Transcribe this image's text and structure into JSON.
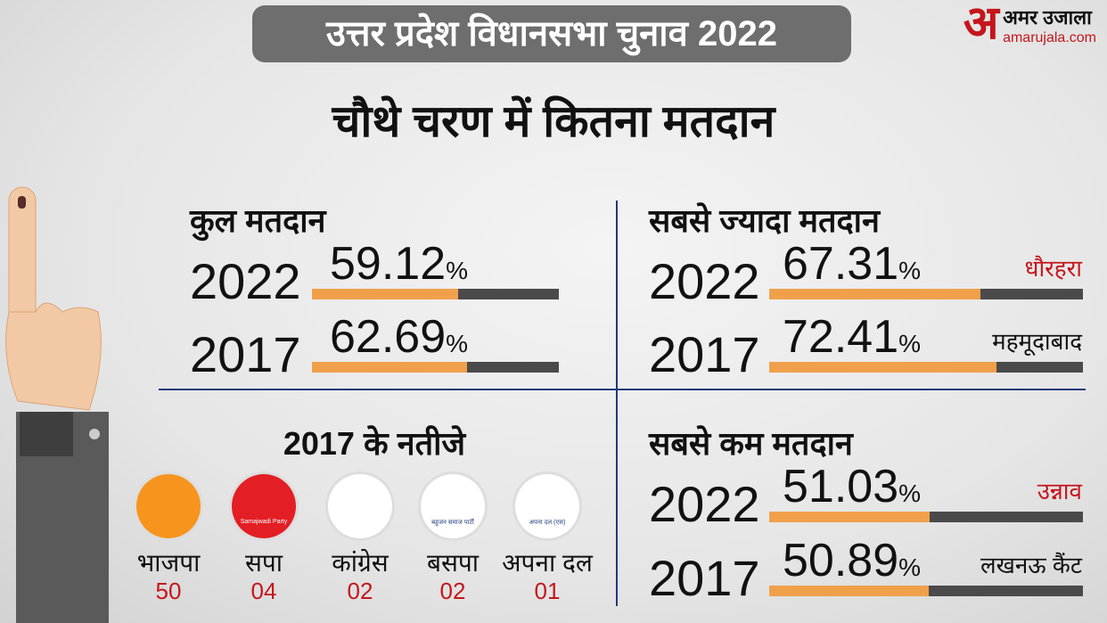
{
  "header": {
    "title": "उत्तर प्रदेश विधानसभा चुनाव 2022",
    "subtitle": "चौथे चरण में कितना मतदान"
  },
  "logo": {
    "mark": "अ",
    "name": "अमर उजाला",
    "url": "amarujala.com"
  },
  "turnout": {
    "unit": "%",
    "xlim": [
      0,
      100
    ],
    "panels": [
      {
        "title": "कुल मतदान",
        "rows": [
          {
            "year": "2022",
            "value": 59.12
          },
          {
            "year": "2017",
            "value": 62.69
          }
        ]
      },
      {
        "title": "सबसे ज्यादा मतदान",
        "rows": [
          {
            "year": "2022",
            "value": 67.31,
            "place": "धौरहरा"
          },
          {
            "year": "2017",
            "value": 72.41,
            "place": "महमूदाबाद"
          }
        ]
      },
      {
        "title": "सबसे कम मतदान",
        "rows": [
          {
            "year": "2022",
            "value": 51.03,
            "place": "उन्नाव"
          },
          {
            "year": "2017",
            "value": 50.89,
            "place": "लखनऊ कैंट"
          }
        ]
      }
    ]
  },
  "results": {
    "title": "2017 के नतीजे",
    "parties": [
      {
        "name": "भाजपा",
        "seats": "50"
      },
      {
        "name": "सपा",
        "seats": "04",
        "logo_text": "Samajwadi Party"
      },
      {
        "name": "कांग्रेस",
        "seats": "02"
      },
      {
        "name": "बसपा",
        "seats": "02",
        "logo_text": "बहुजन समाज पार्टी"
      },
      {
        "name": "अपना दल",
        "seats": "01",
        "logo_text": "अपना दल (एस)"
      }
    ]
  }
}
